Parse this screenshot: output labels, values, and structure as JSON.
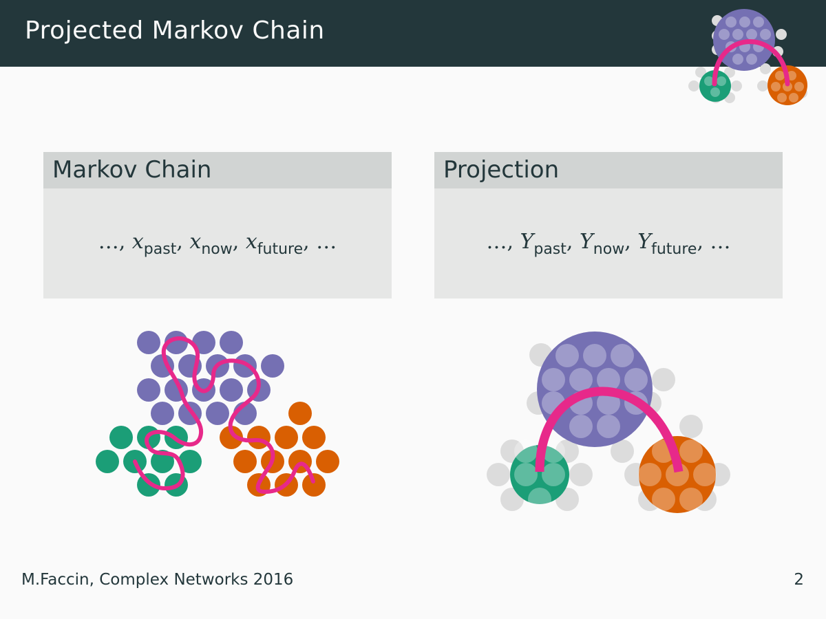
{
  "slide": {
    "title": "Projected Markov Chain",
    "page_number": "2"
  },
  "footer": {
    "text": "M.Faccin, Complex Networks 2016"
  },
  "blocks": [
    {
      "title": "Markov Chain",
      "formula": {
        "lead": "…, ",
        "var": "x",
        "subs": [
          "past",
          "now",
          "future"
        ],
        "trail": "…"
      }
    },
    {
      "title": "Projection",
      "formula": {
        "lead": "…, ",
        "var": "Y",
        "subs": [
          "past",
          "now",
          "future"
        ],
        "trail": "…"
      }
    }
  ],
  "colors": {
    "header_bg": "#23373b",
    "block_head_bg": "#d1d4d3",
    "block_body_bg": "#e6e7e6",
    "purple": "#7570b3",
    "green": "#1b9e77",
    "orange": "#d95f02",
    "path": "#e7298a",
    "gray_node": "#dcdcdc"
  }
}
